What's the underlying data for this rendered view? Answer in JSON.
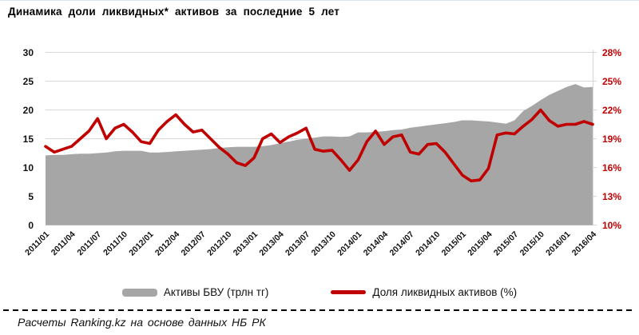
{
  "title": "Динамика  доли  ликвидных*  активов  за  последние 5 лет",
  "footer": "Расчеты Ranking.kz на основе данных НБ РК",
  "legend": [
    {
      "label": "Активы БВУ (трлн тг)",
      "type": "area",
      "color": "#a6a6a6"
    },
    {
      "label": "Доля ликвидных активов (%)",
      "type": "line",
      "color": "#c00000"
    }
  ],
  "colors": {
    "area": "#a6a6a6",
    "line": "#c00000",
    "grid": "#d9d9d9",
    "axis_line": "#c3ccd3",
    "left_text": "#111111",
    "right_text": "#c00000"
  },
  "chart_data": {
    "type": "area",
    "title": "Динамика доли ликвидных* активов за последние 5 лет",
    "x_start": "2011/01",
    "x_end": "2016/04",
    "x_interval": "monthly",
    "x_tick_labels": [
      "2011/01",
      "2011/04",
      "2011/07",
      "2011/10",
      "2012/01",
      "2012/04",
      "2012/07",
      "2012/10",
      "2013/01",
      "2013/04",
      "2013/07",
      "2013/10",
      "2014/01",
      "2014/04",
      "2014/07",
      "2014/10",
      "2015/01",
      "2015/04",
      "2015/07",
      "2015/10",
      "2016/01",
      "2016/04"
    ],
    "left_axis": {
      "ticks": [
        0,
        5,
        10,
        15,
        20,
        25,
        30
      ],
      "range": [
        0,
        30
      ],
      "label": "трлн тг"
    },
    "right_axis": {
      "ticks": [
        "10%",
        "13%",
        "16%",
        "19%",
        "22%",
        "25%",
        "28%"
      ],
      "tick_values": [
        10,
        13,
        16,
        19,
        22,
        25,
        28
      ],
      "range": [
        10,
        28
      ]
    },
    "grid": true,
    "legend_position": "bottom",
    "series": [
      {
        "name": "Активы БВУ (трлн тг)",
        "type": "area",
        "axis": "left",
        "color": "#a6a6a6",
        "values": [
          12.1,
          12.2,
          12.2,
          12.3,
          12.4,
          12.4,
          12.5,
          12.6,
          12.8,
          12.9,
          12.9,
          12.9,
          12.6,
          12.6,
          12.7,
          12.8,
          12.9,
          13.0,
          13.1,
          13.2,
          13.4,
          13.5,
          13.6,
          13.6,
          13.6,
          13.7,
          13.9,
          14.2,
          14.5,
          14.8,
          15.0,
          15.2,
          15.4,
          15.4,
          15.3,
          15.4,
          16.1,
          16.1,
          16.2,
          16.3,
          16.5,
          16.6,
          16.9,
          17.1,
          17.3,
          17.5,
          17.7,
          17.9,
          18.2,
          18.2,
          18.1,
          18.0,
          17.8,
          17.6,
          18.2,
          19.8,
          20.7,
          21.7,
          22.6,
          23.3,
          24.0,
          24.5,
          23.9,
          24.0
        ]
      },
      {
        "name": "Доля ликвидных активов (%)",
        "type": "line",
        "axis": "right",
        "color": "#c00000",
        "values": [
          18.2,
          17.6,
          17.9,
          18.2,
          19.0,
          19.8,
          21.1,
          19.0,
          20.1,
          20.5,
          19.7,
          18.7,
          18.5,
          19.9,
          20.8,
          21.5,
          20.5,
          19.7,
          19.9,
          19.0,
          18.1,
          17.4,
          16.5,
          16.2,
          17.0,
          19.0,
          19.5,
          18.6,
          19.2,
          19.6,
          20.1,
          17.9,
          17.7,
          17.8,
          16.8,
          15.7,
          16.8,
          18.7,
          19.8,
          18.4,
          19.2,
          19.4,
          17.6,
          17.4,
          18.4,
          18.5,
          17.6,
          16.4,
          15.2,
          14.6,
          14.7,
          15.9,
          19.4,
          19.6,
          19.5,
          20.3,
          21.0,
          22.0,
          20.9,
          20.3,
          20.5,
          20.5,
          20.8,
          20.5
        ]
      }
    ]
  }
}
